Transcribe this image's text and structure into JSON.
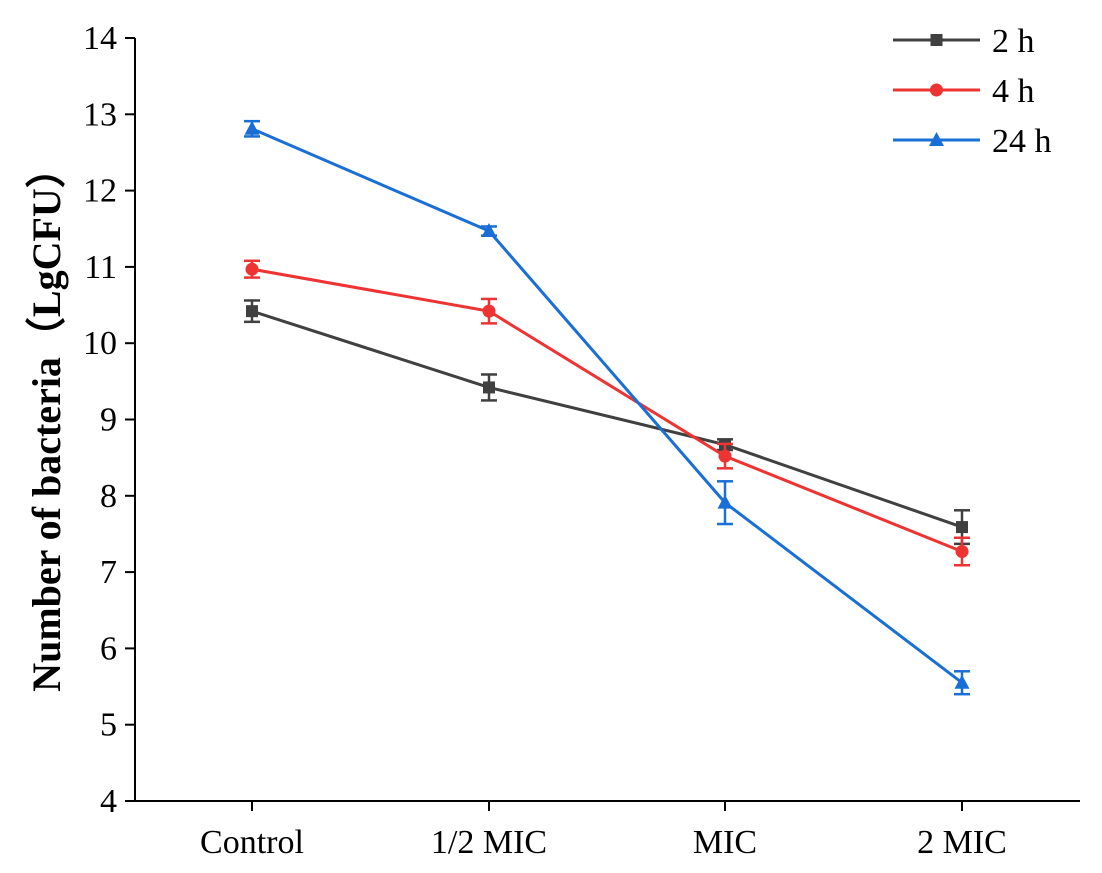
{
  "chart_data": {
    "type": "line",
    "title": "",
    "xlabel": "",
    "ylabel": "Number of bacteria（LgCFU）",
    "categories": [
      "Control",
      "1/2 MIC",
      "MIC",
      "2 MIC"
    ],
    "ylim": [
      4,
      14
    ],
    "yticks": [
      "4",
      "5",
      "6",
      "7",
      "8",
      "9",
      "10",
      "11",
      "12",
      "13",
      "14"
    ],
    "grid": false,
    "legend_position": "top-right",
    "series": [
      {
        "name": "2 h",
        "color": "#404040",
        "marker": "square",
        "values": [
          10.42,
          9.42,
          8.67,
          7.59
        ],
        "errors": [
          0.14,
          0.17,
          0.07,
          0.22
        ]
      },
      {
        "name": "4 h",
        "color": "#ee3333",
        "marker": "circle",
        "values": [
          10.97,
          10.42,
          8.52,
          7.27
        ],
        "errors": [
          0.11,
          0.16,
          0.16,
          0.18
        ]
      },
      {
        "name": "24 h",
        "color": "#1a6fd6",
        "marker": "triangle",
        "values": [
          12.81,
          11.47,
          7.91,
          5.55
        ],
        "errors": [
          0.1,
          0.06,
          0.28,
          0.15
        ]
      }
    ]
  }
}
